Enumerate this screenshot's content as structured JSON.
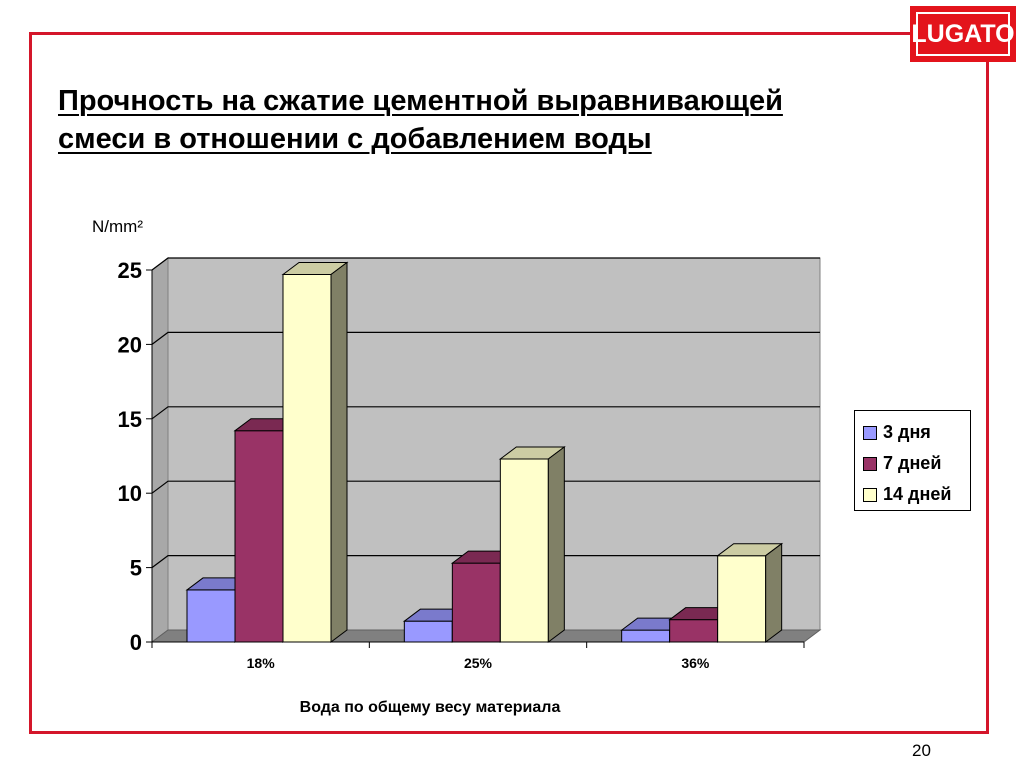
{
  "logo": {
    "text": "LUGATO"
  },
  "title": {
    "line1": "Прочность на сжатие цементной выравнивающей",
    "line2": "смеси в отношении с добавлением воды"
  },
  "page_number": "20",
  "chart_data": {
    "type": "bar",
    "subtype": "3d-clustered",
    "title": "Прочность на сжатие цементной выравнивающей смеси в отношении с добавлением воды",
    "ylabel": "N/mm²",
    "xlabel": "Вода по общему весу материала",
    "categories": [
      "18%",
      "25%",
      "36%"
    ],
    "yticks": [
      "0",
      "5",
      "10",
      "15",
      "20",
      "25"
    ],
    "ylim": [
      0,
      25
    ],
    "grid": true,
    "legend_position": "right",
    "series": [
      {
        "name": "3 дня",
        "values": [
          3.5,
          1.4,
          0.8
        ],
        "color": "#9999ff"
      },
      {
        "name": "7 дней",
        "values": [
          14.2,
          5.3,
          1.5
        ],
        "color": "#993366"
      },
      {
        "name": "14 дней",
        "values": [
          24.7,
          12.3,
          5.8
        ],
        "color": "#ffffcc"
      }
    ]
  },
  "colors": {
    "frame": "#d4162a",
    "logo_bg": "#e3141c",
    "plot_wall": "#c0c0c0",
    "floor": "#808080"
  }
}
